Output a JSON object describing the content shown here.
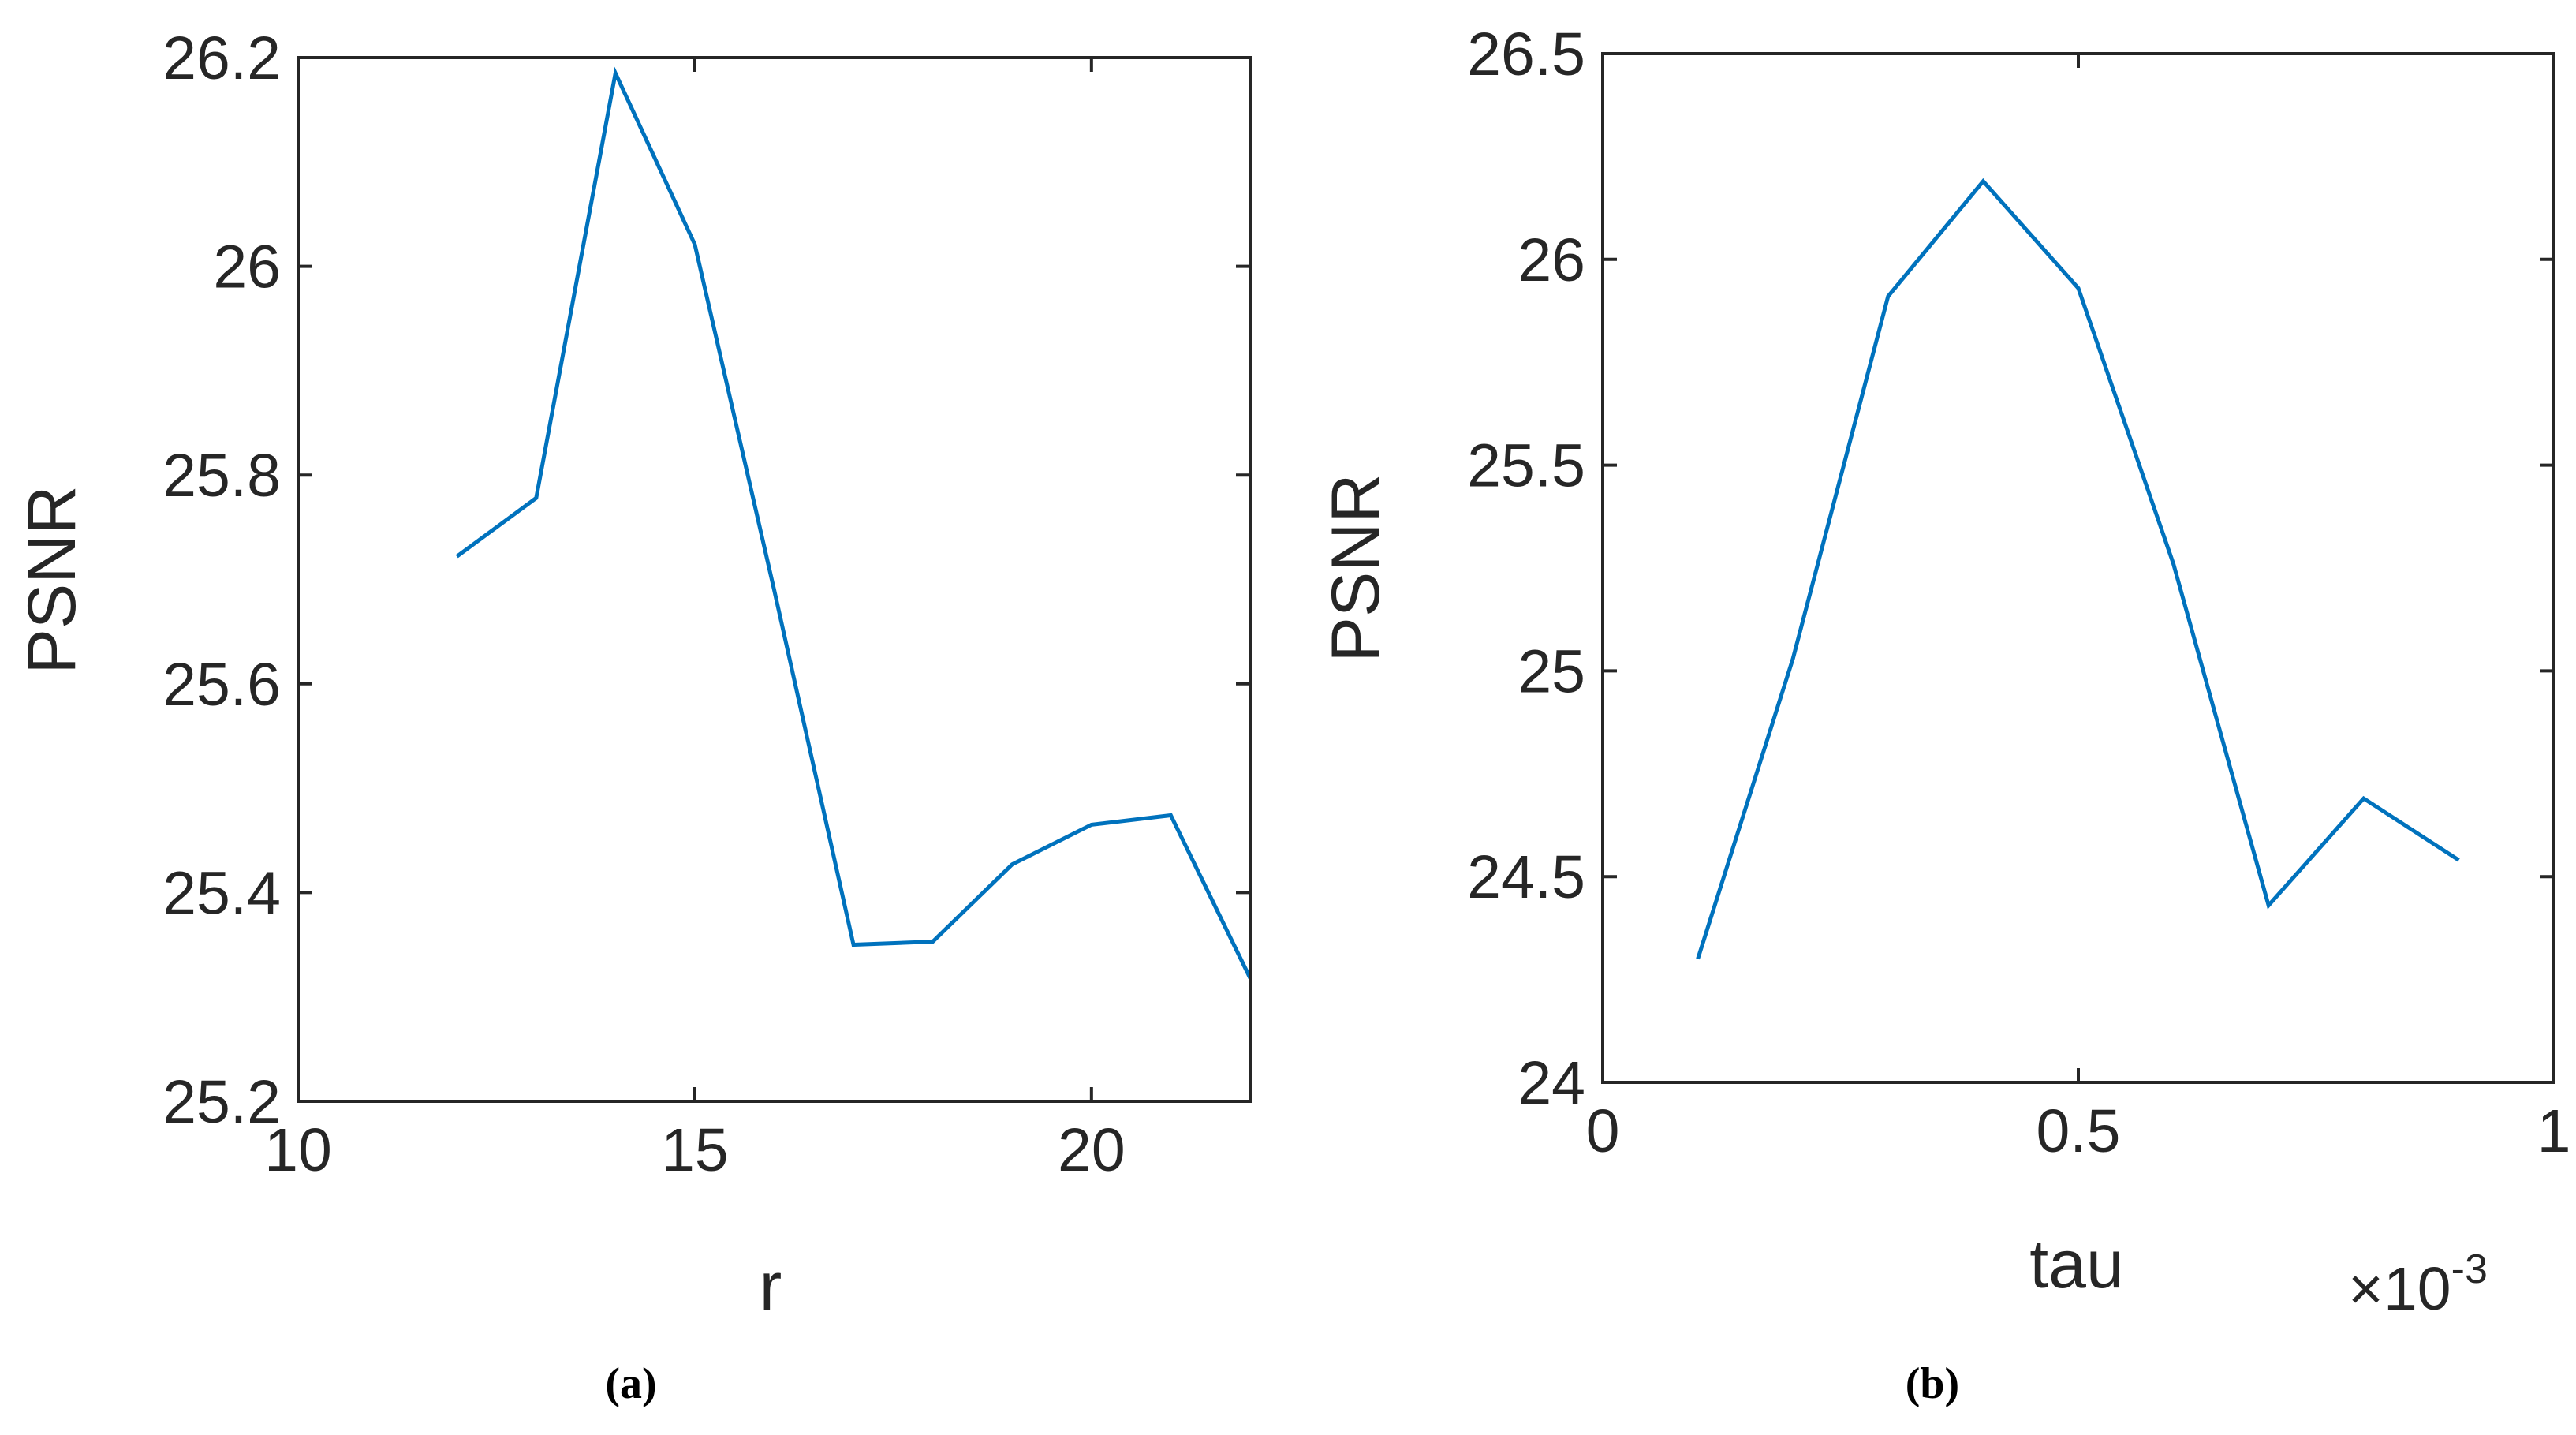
{
  "line_color": "#0072BD",
  "chart_data": [
    {
      "type": "line",
      "caption": "(a)",
      "xlabel": "r",
      "ylabel": "PSNR",
      "xlim": [
        10,
        22
      ],
      "ylim": [
        25.2,
        26.2
      ],
      "xticks": [
        10,
        15,
        20
      ],
      "xtick_labels": [
        "10",
        "15",
        "20"
      ],
      "yticks": [
        25.2,
        25.4,
        25.6,
        25.8,
        26.0,
        26.2
      ],
      "ytick_labels": [
        "25.2",
        "25.4",
        "25.6",
        "25.8",
        "26",
        "26.2"
      ],
      "exponent_label": "",
      "grid": false,
      "x": [
        12,
        13,
        14,
        15,
        16,
        17,
        18,
        19,
        20,
        21,
        22
      ],
      "series": [
        {
          "values": [
            25.722,
            25.778,
            26.185,
            26.021,
            25.69,
            25.35,
            25.353,
            25.427,
            25.465,
            25.474,
            25.318
          ]
        }
      ]
    },
    {
      "type": "line",
      "caption": "(b)",
      "xlabel": "tau",
      "ylabel": "PSNR",
      "xlim": [
        0,
        0.001
      ],
      "ylim": [
        24,
        26.5
      ],
      "xticks": [
        0,
        0.0005,
        0.001
      ],
      "xtick_labels": [
        "0",
        "0.5",
        "1"
      ],
      "yticks": [
        24,
        24.5,
        25,
        25.5,
        26,
        26.5
      ],
      "ytick_labels": [
        "24",
        "24.5",
        "25",
        "25.5",
        "26",
        "26.5"
      ],
      "exponent_label": "×10",
      "exponent_power": "-3",
      "grid": false,
      "x": [
        0.0001,
        0.0002,
        0.0003,
        0.0004,
        0.0005,
        0.0006,
        0.0007,
        0.0008,
        0.0009
      ],
      "series": [
        {
          "values": [
            24.3,
            25.03,
            25.91,
            26.19,
            25.93,
            25.26,
            24.43,
            24.69,
            24.54
          ]
        }
      ]
    }
  ]
}
